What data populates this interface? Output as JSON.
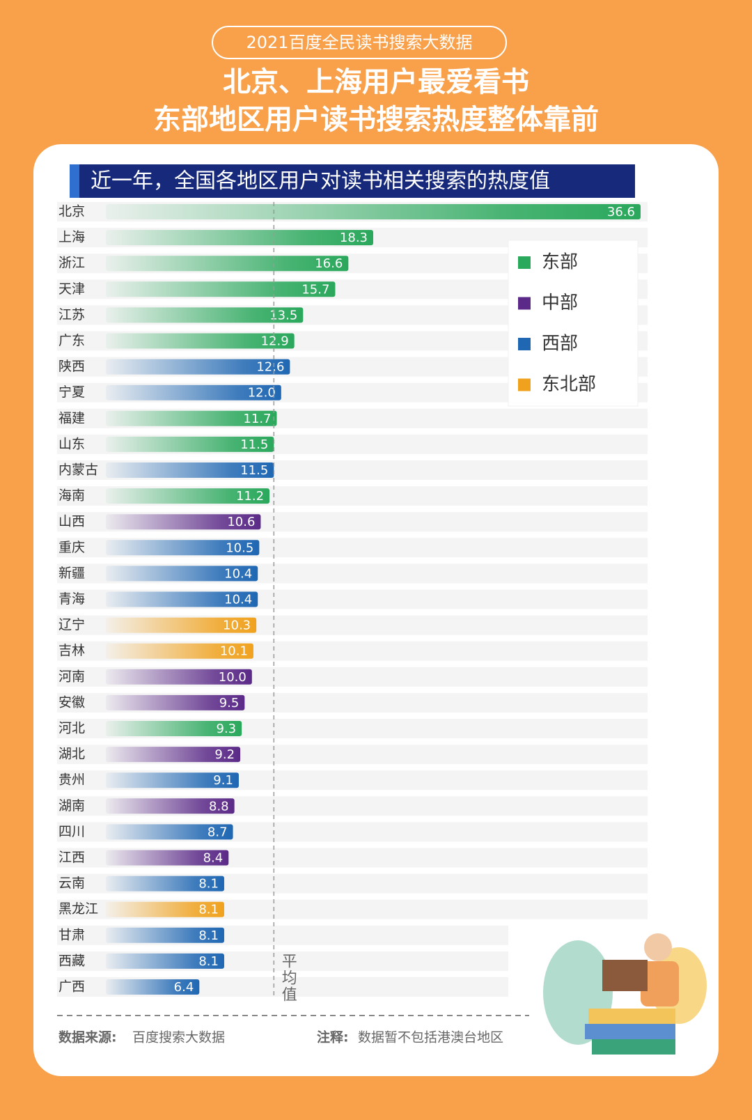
{
  "header": {
    "badge": "2021百度全民读书搜索大数据",
    "title_line1": "北京、上海用户最爱看书",
    "title_line2": "东部地区用户读书搜索热度整体靠前"
  },
  "chart_data": {
    "type": "bar",
    "orientation": "horizontal",
    "title": "近一年，全国各地区用户对读书相关搜索的热度值",
    "categories": [
      "北京",
      "上海",
      "浙江",
      "天津",
      "江苏",
      "广东",
      "陕西",
      "宁夏",
      "福建",
      "山东",
      "内蒙古",
      "海南",
      "山西",
      "重庆",
      "新疆",
      "青海",
      "辽宁",
      "吉林",
      "河南",
      "安徽",
      "河北",
      "湖北",
      "贵州",
      "湖南",
      "四川",
      "江西",
      "云南",
      "黑龙江",
      "甘肃",
      "西藏",
      "广西"
    ],
    "values": [
      36.6,
      18.3,
      16.6,
      15.7,
      13.5,
      12.9,
      12.6,
      12.0,
      11.7,
      11.5,
      11.5,
      11.2,
      10.6,
      10.5,
      10.4,
      10.4,
      10.3,
      10.1,
      10.0,
      9.5,
      9.3,
      9.2,
      9.1,
      8.8,
      8.7,
      8.4,
      8.1,
      8.1,
      8.1,
      8.1,
      6.4
    ],
    "value_labels": [
      "36.6",
      "18.3",
      "16.6",
      "15.7",
      "13.5",
      "12.9",
      "12.6",
      "12.0",
      "11.7",
      "11.5",
      "11.5",
      "11.2",
      "10.6",
      "10.5",
      "10.4",
      "10.4",
      "10.3",
      "10.1",
      "10.0",
      "9.5",
      "9.3",
      "9.2",
      "9.1",
      "8.8",
      "8.7",
      "8.4",
      "8.1",
      "8.1",
      "8.1",
      "8.1",
      "6.4"
    ],
    "regions": [
      0,
      0,
      0,
      0,
      0,
      0,
      2,
      2,
      0,
      0,
      2,
      0,
      1,
      2,
      2,
      2,
      3,
      3,
      1,
      1,
      0,
      1,
      2,
      1,
      2,
      1,
      2,
      3,
      2,
      2,
      2
    ],
    "legend": [
      {
        "name": "东部",
        "color": "#2aa85c"
      },
      {
        "name": "中部",
        "color": "#5b2a88"
      },
      {
        "name": "西部",
        "color": "#1f67b3"
      },
      {
        "name": "东北部",
        "color": "#f0a21e"
      }
    ],
    "average": 11.5,
    "average_label": "平均值"
  },
  "footer": {
    "source_label": "数据来源:",
    "source_text": "百度搜索大数据",
    "note_label": "注释:",
    "note_text": "数据暂不包括港澳台地区"
  }
}
